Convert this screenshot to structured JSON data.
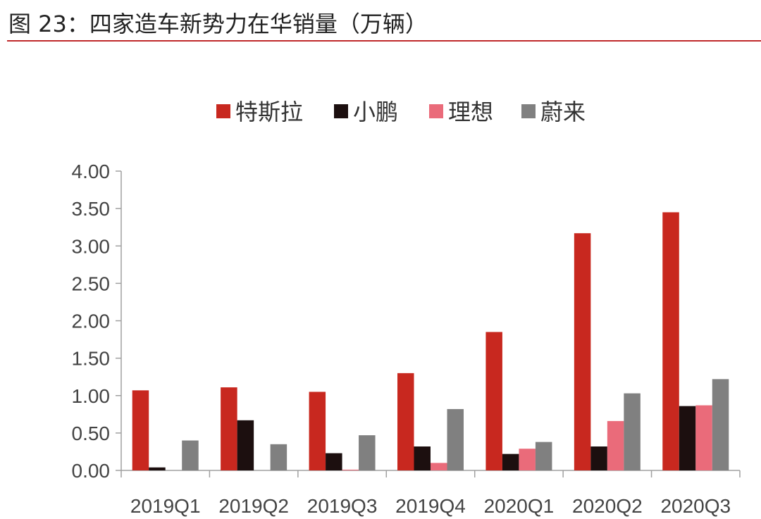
{
  "figure_title": "图 23：四家造车新势力在华销量（万辆）",
  "colors": {
    "title_rule": "#c0282a",
    "axis": "#a0a0a0"
  },
  "chart_data": {
    "type": "bar",
    "title": "图 23：四家造车新势力在华销量（万辆）",
    "xlabel": "",
    "ylabel": "",
    "ylim": [
      0,
      4
    ],
    "yticks": [
      0,
      0.5,
      1,
      1.5,
      2,
      2.5,
      3,
      3.5,
      4
    ],
    "ytick_labels": [
      "0.00",
      "0.50",
      "1.00",
      "1.50",
      "2.00",
      "2.50",
      "3.00",
      "3.50",
      "4.00"
    ],
    "grid": false,
    "legend_position": "top-center",
    "categories": [
      "2019Q1",
      "2019Q2",
      "2019Q3",
      "2019Q4",
      "2020Q1",
      "2020Q2",
      "2020Q3"
    ],
    "series": [
      {
        "name": "特斯拉",
        "color": "#c8281f",
        "values": [
          1.07,
          1.11,
          1.05,
          1.3,
          1.85,
          3.17,
          3.45
        ]
      },
      {
        "name": "小鹏",
        "color": "#1c0f0f",
        "values": [
          0.04,
          0.67,
          0.23,
          0.32,
          0.22,
          0.32,
          0.86
        ]
      },
      {
        "name": "理想",
        "color": "#ea6b7a",
        "values": [
          0.0,
          0.0,
          0.01,
          0.1,
          0.29,
          0.66,
          0.87
        ]
      },
      {
        "name": "蔚来",
        "color": "#808080",
        "values": [
          0.4,
          0.35,
          0.47,
          0.82,
          0.38,
          1.03,
          1.22
        ]
      }
    ]
  }
}
